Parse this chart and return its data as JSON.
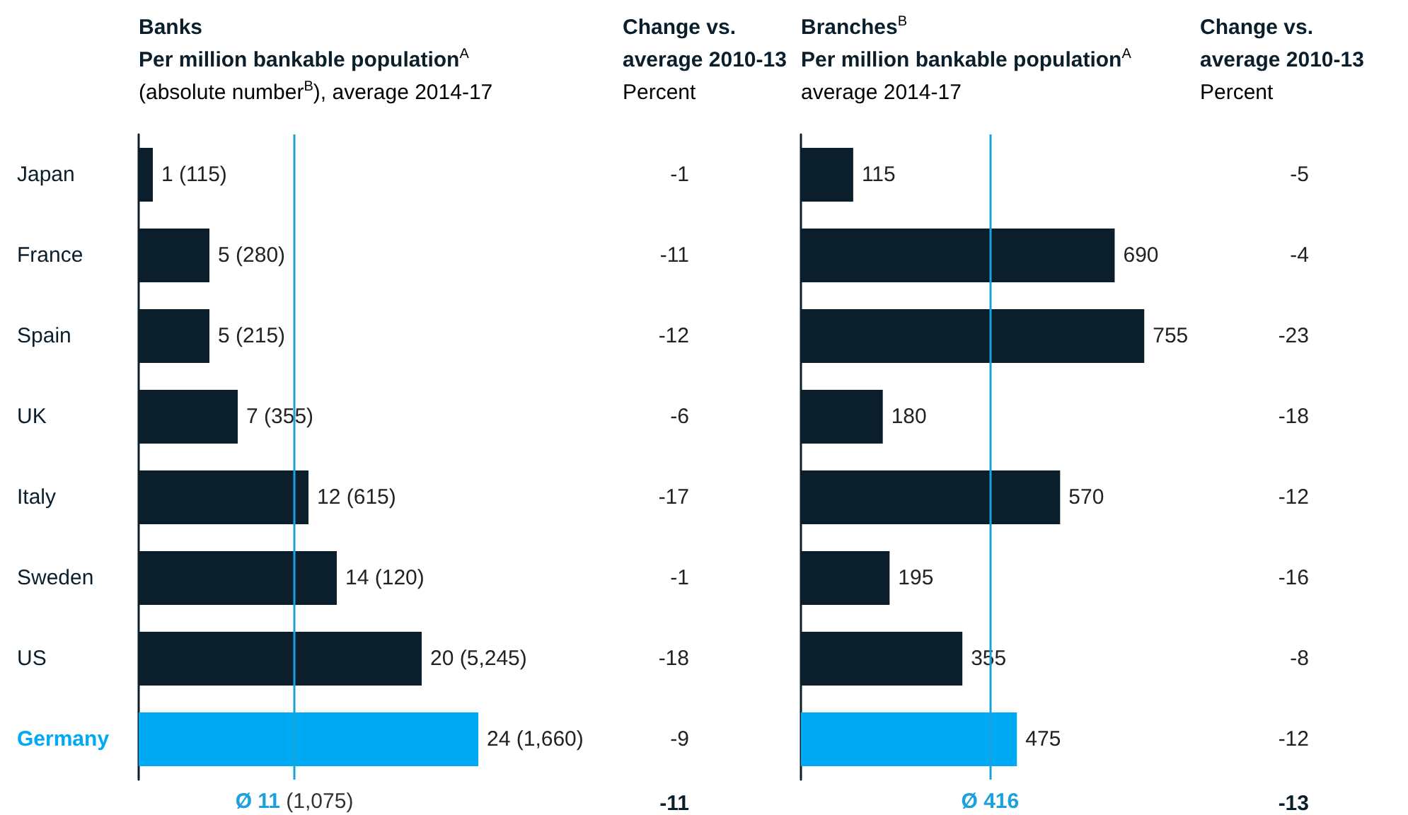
{
  "chart_data": [
    {
      "type": "bar",
      "orientation": "horizontal",
      "title": "Banks",
      "subtitle": "Per million bankable population$^{A}$",
      "xlabel": "(absolute number$^{B}$), average 2014-17",
      "categories": [
        "Japan",
        "France",
        "Spain",
        "UK",
        "Italy",
        "Sweden",
        "US",
        "Germany"
      ],
      "values": [
        1,
        5,
        5,
        7,
        12,
        14,
        20,
        24
      ],
      "colors": [
        "#0a1e2c",
        "#0a1e2c",
        "#0a1e2c",
        "#0a1e2c",
        "#0a1e2c",
        "#0a1e2c",
        "#0a1e2c",
        "#00a9f4"
      ],
      "value_labels": [
        "1 (115)",
        "5 (280)",
        "5 (215)",
        "7 (355)",
        "12 (615)",
        "14 (120)",
        "20 (5,245)",
        "24 (1,660)"
      ],
      "ref_lines": [
        {
          "axis": "x",
          "value": 11,
          "label": "Ø 11 (1,075)",
          "color": "#1ba1dc"
        }
      ]
    },
    {
      "type": "other",
      "title": "Change vs. average 2010-13",
      "subtitle": "Percent",
      "categories": [
        null,
        null,
        null,
        null,
        null,
        null,
        null,
        null
      ],
      "values": [
        -1,
        -11,
        -12,
        -6,
        -17,
        -1,
        -18,
        -9
      ],
      "data_labels": true,
      "annotations": [
        "-11"
      ]
    },
    {
      "type": "bar",
      "orientation": "horizontal",
      "title": "Branches$^{B}$",
      "subtitle": "Per million bankable population$^{A}$",
      "xlabel": "average 2014-17",
      "categories": [
        null,
        null,
        null,
        null,
        null,
        null,
        null,
        null
      ],
      "values": [
        115,
        690,
        755,
        180,
        570,
        195,
        355,
        475
      ],
      "colors": [
        "#0a1e2c",
        "#0a1e2c",
        "#0a1e2c",
        "#0a1e2c",
        "#0a1e2c",
        "#0a1e2c",
        "#0a1e2c",
        "#00a9f4"
      ],
      "data_labels": true,
      "ref_lines": [
        {
          "axis": "x",
          "value": 416,
          "label": "Ø 416",
          "color": "#1ba1dc"
        }
      ]
    },
    {
      "type": "other",
      "title": "Change vs. average 2010-13",
      "subtitle": "Percent",
      "categories": [
        null,
        null,
        null,
        null,
        null,
        null,
        null,
        null
      ],
      "values": [
        -5,
        -4,
        -23,
        -18,
        -12,
        -16,
        -8,
        -12
      ],
      "data_labels": true,
      "annotations": [
        "-13"
      ]
    }
  ]
}
